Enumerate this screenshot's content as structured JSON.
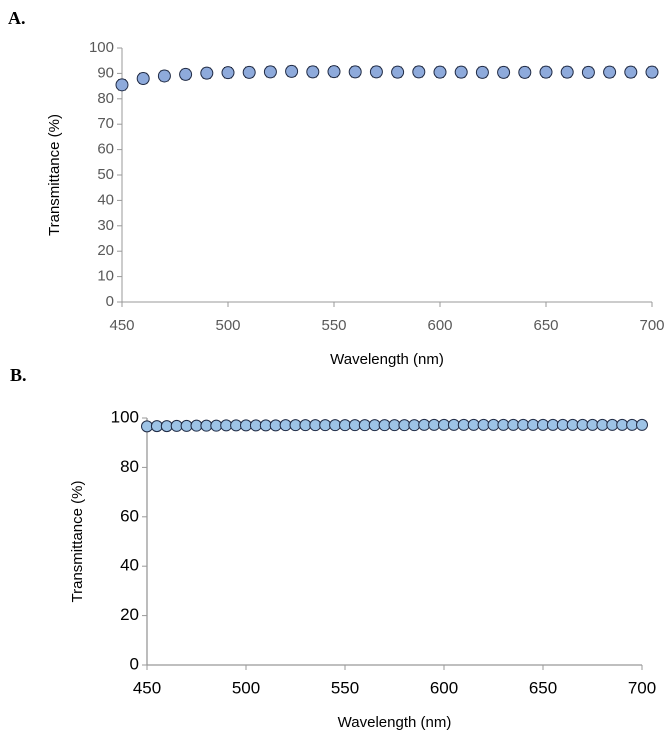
{
  "chart_data": [
    {
      "type": "scatter",
      "panel_label": "A.",
      "x_label": "Wavelength (nm)",
      "y_label": "Transmittance (%)",
      "x": [
        450,
        460,
        470,
        480,
        490,
        500,
        510,
        520,
        530,
        540,
        550,
        560,
        570,
        580,
        590,
        600,
        610,
        620,
        630,
        640,
        650,
        660,
        670,
        680,
        690,
        700
      ],
      "values": [
        85.5,
        88,
        89,
        89.6,
        90.1,
        90.3,
        90.4,
        90.6,
        90.8,
        90.6,
        90.7,
        90.6,
        90.6,
        90.5,
        90.6,
        90.5,
        90.5,
        90.4,
        90.4,
        90.4,
        90.5,
        90.5,
        90.4,
        90.5,
        90.5,
        90.5
      ],
      "errors": [
        2,
        2,
        2,
        2,
        2,
        2,
        2,
        2,
        2,
        2,
        2,
        2,
        2,
        2,
        2,
        2,
        2,
        2,
        2,
        2,
        2,
        2,
        2,
        2,
        2,
        2
      ],
      "color": "#8eaadb",
      "xlim": [
        450,
        700
      ],
      "xticks": [
        450,
        500,
        550,
        600,
        650,
        700
      ],
      "ylim": [
        0,
        100
      ],
      "yticks": [
        0,
        10,
        20,
        30,
        40,
        50,
        60,
        70,
        80,
        90,
        100
      ]
    },
    {
      "type": "scatter",
      "panel_label": "B.",
      "x_label": "Wavelength (nm)",
      "y_label": "Transmittance (%)",
      "x": [
        450,
        455,
        460,
        465,
        470,
        475,
        480,
        485,
        490,
        495,
        500,
        505,
        510,
        515,
        520,
        525,
        530,
        535,
        540,
        545,
        550,
        555,
        560,
        565,
        570,
        575,
        580,
        585,
        590,
        595,
        600,
        605,
        610,
        615,
        620,
        625,
        630,
        635,
        640,
        645,
        650,
        655,
        660,
        665,
        670,
        675,
        680,
        685,
        690,
        695,
        700
      ],
      "values": [
        96.6,
        96.7,
        96.7,
        96.8,
        96.8,
        96.9,
        96.9,
        96.9,
        97.0,
        97.0,
        97.0,
        97.0,
        97.0,
        97.0,
        97.1,
        97.1,
        97.1,
        97.1,
        97.1,
        97.1,
        97.1,
        97.1,
        97.1,
        97.1,
        97.1,
        97.1,
        97.1,
        97.1,
        97.2,
        97.2,
        97.2,
        97.2,
        97.2,
        97.2,
        97.2,
        97.2,
        97.2,
        97.2,
        97.2,
        97.2,
        97.2,
        97.2,
        97.2,
        97.2,
        97.2,
        97.2,
        97.2,
        97.2,
        97.2,
        97.2,
        97.2
      ],
      "errors": [
        0.3,
        0.3,
        0.3,
        0.3,
        0.3,
        0.3,
        0.3,
        0.3,
        0.3,
        0.3,
        0.3,
        0.3,
        0.3,
        0.3,
        0.3,
        0.3,
        0.3,
        0.3,
        0.3,
        0.3,
        0.3,
        0.3,
        0.3,
        0.3,
        0.3,
        0.3,
        0.3,
        0.3,
        0.3,
        0.3,
        0.3,
        0.3,
        0.3,
        0.3,
        0.3,
        0.3,
        0.3,
        0.3,
        0.3,
        0.3,
        0.3,
        0.3,
        0.3,
        0.3,
        0.3,
        0.3,
        0.3,
        0.3,
        0.3,
        0.3,
        0.3
      ],
      "color": "#9dc3e6",
      "xlim": [
        450,
        700
      ],
      "xticks": [
        450,
        500,
        550,
        600,
        650,
        700
      ],
      "ylim": [
        0,
        100
      ],
      "yticks": [
        0,
        20,
        40,
        60,
        80,
        100
      ]
    }
  ]
}
